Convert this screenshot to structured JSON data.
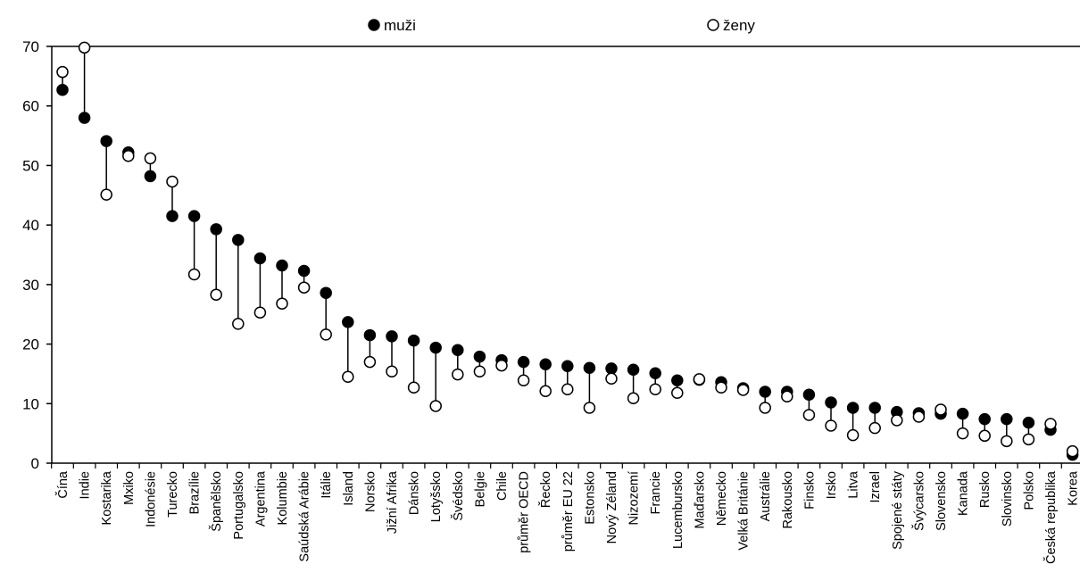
{
  "chart_data": {
    "type": "scatter",
    "categories": [
      "Čína",
      "Indie",
      "Kostarika",
      "Mxiko",
      "Indonésie",
      "Turecko",
      "Brazílie",
      "Španělsko",
      "Portugalsko",
      "Argentina",
      "Kolumbie",
      "Saúdská Arábie",
      "Itálie",
      "Island",
      "Norsko",
      "Jižní Afrika",
      "Dánsko",
      "Lotyšsko",
      "Švédsko",
      "Belgie",
      "Chile",
      "průměr OECD",
      "Řecko",
      "průměr EU 22",
      "Estonsko",
      "Nový Zéland",
      "Nizozemí",
      "Francie",
      "Lucembursko",
      "Maďarsko",
      "Německo",
      "Velká Británie",
      "Austrálie",
      "Rakousko",
      "Finsko",
      "Irsko",
      "Litva",
      "Izrael",
      "Spojené státy",
      "Švýcarsko",
      "Slovensko",
      "Kanada",
      "Rusko",
      "Slovinsko",
      "Polsko",
      "Česká republika",
      "Korea"
    ],
    "series": [
      {
        "name": "muži",
        "values": [
          62.7,
          58.0,
          54.1,
          52.2,
          48.2,
          41.5,
          41.5,
          39.3,
          37.5,
          34.4,
          33.2,
          32.3,
          28.6,
          23.7,
          21.5,
          21.3,
          20.6,
          19.4,
          19.0,
          17.9,
          17.3,
          17.0,
          16.6,
          16.3,
          16.0,
          15.9,
          15.7,
          15.1,
          13.9,
          14.0,
          13.6,
          12.6,
          12.0,
          12.0,
          11.5,
          10.2,
          9.3,
          9.3,
          8.6,
          8.4,
          8.3,
          8.3,
          7.4,
          7.4,
          6.8,
          5.6,
          1.4
        ]
      },
      {
        "name": "ženy",
        "values": [
          65.7,
          69.8,
          45.1,
          51.6,
          51.2,
          47.3,
          31.7,
          28.3,
          23.4,
          25.3,
          26.8,
          29.5,
          21.6,
          14.5,
          17.0,
          15.4,
          12.7,
          9.6,
          14.9,
          15.4,
          16.4,
          13.9,
          12.1,
          12.4,
          9.3,
          14.2,
          10.9,
          12.4,
          11.8,
          14.1,
          12.7,
          12.3,
          9.3,
          11.2,
          8.1,
          6.3,
          4.7,
          5.9,
          7.2,
          7.8,
          9.0,
          5.0,
          4.6,
          3.7,
          4.0,
          6.6,
          2.0
        ]
      }
    ],
    "ylim": [
      0,
      70
    ],
    "yticks": [
      0,
      10,
      20,
      30,
      40,
      50,
      60,
      70
    ],
    "legend_position": "top",
    "colors": {
      "muzi": "#000000",
      "zeny": "#ffffff",
      "line": "#000000"
    }
  }
}
